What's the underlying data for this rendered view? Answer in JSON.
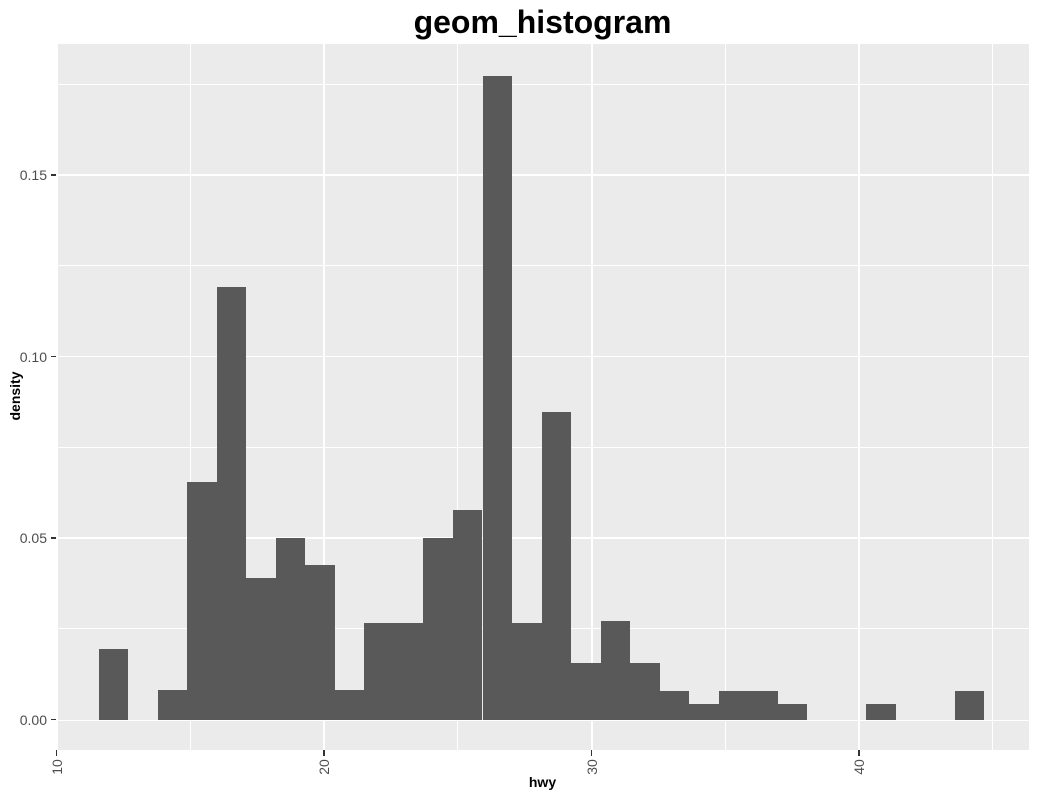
{
  "colors": {
    "page_bg": "#FFFFFF",
    "panel_bg": "#EBEBEB",
    "grid": "#FFFFFF",
    "bar_fill": "#595959",
    "tick_text": "#4D4D4D",
    "tick_mark": "#333333",
    "axis_title_text": "#000000",
    "title_text": "#000000"
  },
  "chart_data": {
    "type": "bar",
    "subtype": "histogram",
    "title": "geom_histogram",
    "xlabel": "hwy",
    "ylabel": "density",
    "legend_position": "none",
    "grid": true,
    "x_domain": [
      9.974,
      46.35
    ],
    "y_domain": [
      -0.0084,
      0.18613
    ],
    "x_major_ticks": [
      10,
      20,
      30,
      40
    ],
    "x_tick_labels": [
      "10",
      "20",
      "30",
      "40"
    ],
    "x_minor_ticks": [
      15,
      25,
      35,
      45
    ],
    "y_major_ticks": [
      0,
      0.05,
      0.1,
      0.15
    ],
    "y_tick_labels": [
      "0.00",
      "0.05",
      "0.10",
      "0.15"
    ],
    "y_minor_ticks": [
      0.025,
      0.075,
      0.125,
      0.175
    ],
    "bins": {
      "start": 11.58,
      "binwidth": 1.103,
      "densities": [
        0.0193,
        0,
        0.008,
        0.0655,
        0.1193,
        0.0389,
        0.0501,
        0.0427,
        0.008,
        0.0267,
        0.0267,
        0.0501,
        0.0578,
        0.1772,
        0.0267,
        0.0847,
        0.0156,
        0.0271,
        0.0156,
        0.0078,
        0.0043,
        0.0078,
        0.0078,
        0.0043,
        0,
        0,
        0.0043,
        0,
        0,
        0.0078
      ]
    }
  }
}
